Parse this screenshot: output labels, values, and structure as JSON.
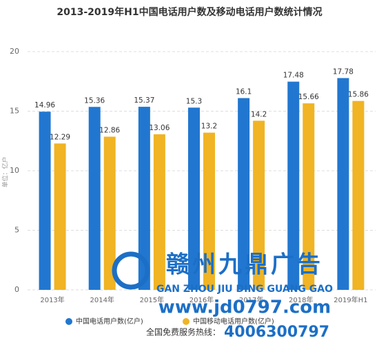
{
  "chart_data": {
    "type": "bar",
    "title": "2013-2019年H1中国电话用户数及移动电话用户数统计情况",
    "y_label": "单位：亿户",
    "categories": [
      "2013年",
      "2014年",
      "2015年",
      "2016年",
      "2017年",
      "2018年",
      "2019年H1"
    ],
    "series": [
      {
        "name": "中国电话用户数(亿户)",
        "color": "#2177d0",
        "values": [
          14.96,
          15.36,
          15.37,
          15.3,
          16.1,
          17.48,
          17.78
        ]
      },
      {
        "name": "中国移动电话用户数(亿户)",
        "color": "#f0b424",
        "values": [
          12.29,
          12.86,
          13.06,
          13.2,
          14.2,
          15.66,
          15.86
        ]
      }
    ],
    "ylim": [
      0,
      20
    ],
    "yticks": [
      0,
      5,
      10,
      15,
      20
    ],
    "grid": true
  },
  "watermark": {
    "brand": "赣州九鼎广告",
    "pinyin": "GAN ZHOU JIU DING GUANG GAO",
    "url": "www.jd0797.com",
    "hotline_label": "全国免费服务热线：",
    "hotline": "4006300797"
  }
}
